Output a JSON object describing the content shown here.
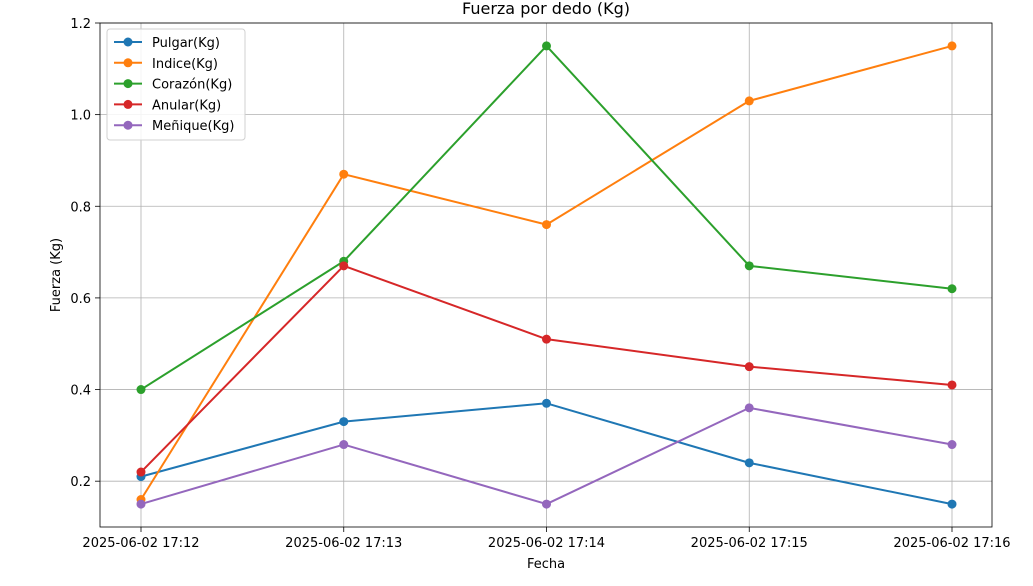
{
  "chart_data": {
    "type": "line",
    "title": "Fuerza por dedo (Kg)",
    "xlabel": "Fecha",
    "ylabel": "Fuerza (Kg)",
    "x": [
      "2025-06-02 17:12",
      "2025-06-02 17:13",
      "2025-06-02 17:14",
      "2025-06-02 17:15",
      "2025-06-02 17:16"
    ],
    "ylim": [
      0.1,
      1.2
    ],
    "yticks": [
      0.2,
      0.4,
      0.6,
      0.8,
      1.0,
      1.2
    ],
    "ytick_labels": [
      "0.2",
      "0.4",
      "0.6",
      "0.8",
      "1.0",
      "1.2"
    ],
    "grid": true,
    "legend_position": "top-left",
    "series": [
      {
        "name": "Pulgar(Kg)",
        "color": "#1f77b4",
        "values": [
          0.21,
          0.33,
          0.37,
          0.24,
          0.15
        ]
      },
      {
        "name": "Indice(Kg)",
        "color": "#ff7f0e",
        "values": [
          0.16,
          0.87,
          0.76,
          1.03,
          1.15
        ]
      },
      {
        "name": "Corazón(Kg)",
        "color": "#2ca02c",
        "values": [
          0.4,
          0.68,
          1.15,
          0.67,
          0.62
        ]
      },
      {
        "name": "Anular(Kg)",
        "color": "#d62728",
        "values": [
          0.22,
          0.67,
          0.51,
          0.45,
          0.41
        ]
      },
      {
        "name": "Meñique(Kg)",
        "color": "#9467bd",
        "values": [
          0.15,
          0.28,
          0.15,
          0.36,
          0.28
        ]
      }
    ]
  }
}
